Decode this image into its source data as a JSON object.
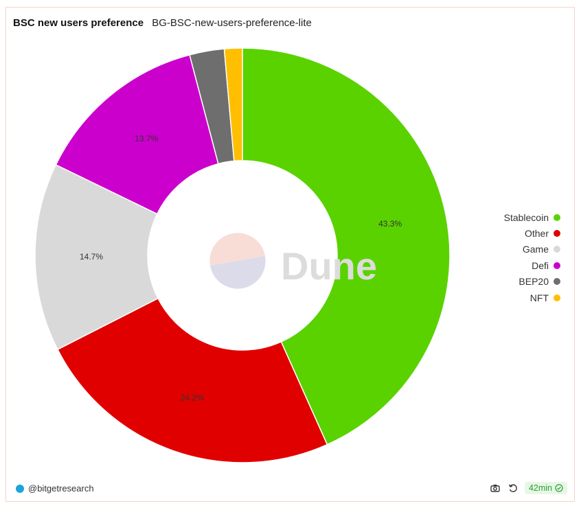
{
  "header": {
    "title": "BSC new users preference",
    "subtitle": "BG-BSC-new-users-preference-lite"
  },
  "chart_data": {
    "type": "pie",
    "title": "BSC new users preference",
    "subtitle": "BG-BSC-new-users-preference-lite",
    "donut": true,
    "slices": [
      {
        "name": "Stablecoin",
        "value": 43.3,
        "label": "43.3%",
        "color": "#5ad200"
      },
      {
        "name": "Other",
        "value": 24.2,
        "label": "24.2%",
        "color": "#e00000"
      },
      {
        "name": "Game",
        "value": 14.7,
        "label": "14.7%",
        "color": "#d9d9d9"
      },
      {
        "name": "Defi",
        "value": 13.7,
        "label": "13.7%",
        "color": "#cc00cc"
      },
      {
        "name": "BEP20",
        "value": 2.7,
        "label": "",
        "color": "#6e6e6e"
      },
      {
        "name": "NFT",
        "value": 1.4,
        "label": "",
        "color": "#ffbf00"
      }
    ],
    "legend_position": "right"
  },
  "watermark": {
    "text": "Dune"
  },
  "footer": {
    "author": "@bitgetresearch",
    "snapshot_icon": "camera-icon",
    "refresh_icon": "refresh-icon",
    "freshness": "42min",
    "freshness_icon": "check-circle-icon"
  }
}
